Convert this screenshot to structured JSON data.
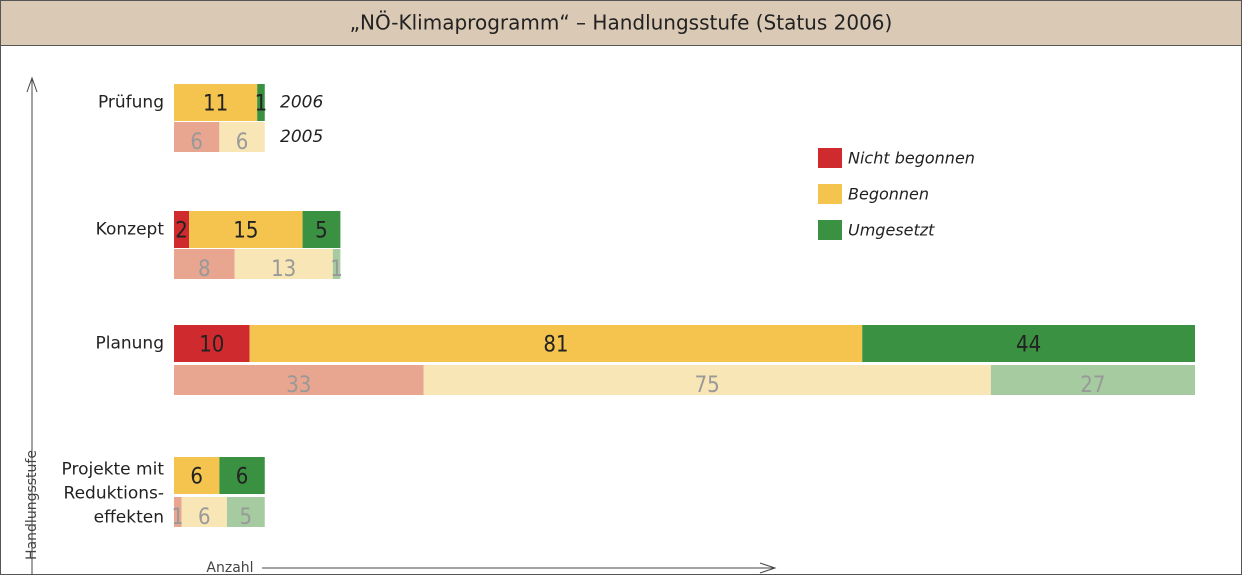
{
  "chart_data": {
    "type": "stacked-bar-horizontal",
    "title": "„NÖ-Klimaprogramm“ – Handlungsstufe (Status 2006)",
    "x_label": "Anzahl",
    "y_label": "Handlungsstufe",
    "categories": [
      [
        "Prüfung"
      ],
      [
        "Konzept"
      ],
      [
        "Planung"
      ],
      [
        "Projekte mit",
        "Reduktions-",
        "effekten"
      ]
    ],
    "years": [
      "2006",
      "2005"
    ],
    "xlim": [
      0,
      135
    ],
    "series": [
      {
        "name": "Nicht begonnen",
        "color": "#cf2a2e",
        "color_2005": "#e8a58f",
        "values_2006": [
          null,
          2,
          10,
          null
        ],
        "values_2005": [
          6,
          8,
          33,
          1
        ]
      },
      {
        "name": "Begonnen",
        "color": "#f4c44e",
        "color_2005": "#f9e6b6",
        "values_2006": [
          11,
          15,
          81,
          6
        ],
        "values_2005": [
          6,
          13,
          75,
          6
        ]
      },
      {
        "name": "Umgesetzt",
        "color": "#3a9142",
        "color_2005": "#a7cba0",
        "values_2006": [
          1,
          5,
          44,
          6
        ],
        "values_2005": [
          null,
          1,
          27,
          5
        ]
      }
    ]
  }
}
